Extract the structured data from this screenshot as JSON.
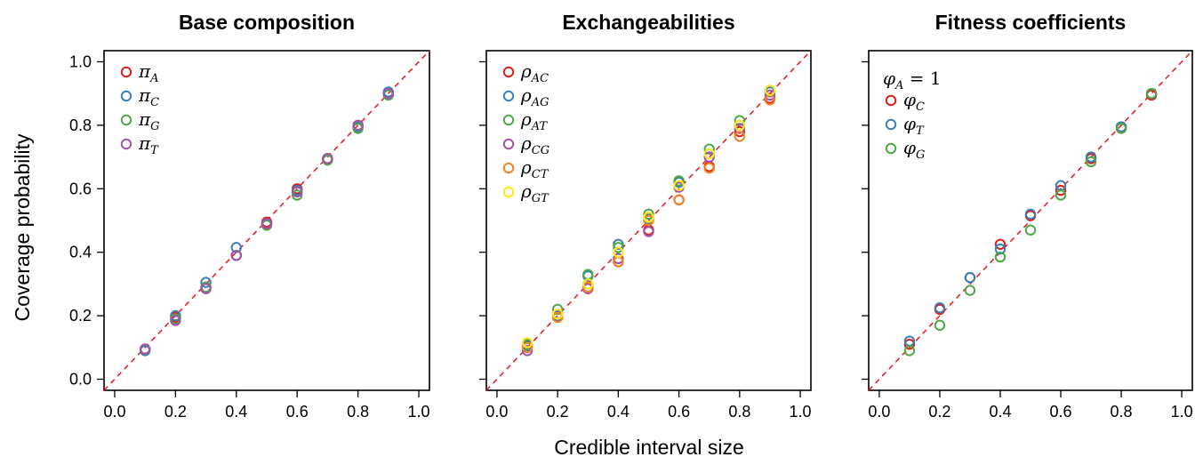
{
  "figure": {
    "xlabel": "Credible interval size",
    "ylabel": "Coverage probability"
  },
  "chart_data": [
    {
      "type": "scatter",
      "title": "Base composition",
      "xlim": [
        0,
        1
      ],
      "ylim": [
        0,
        1
      ],
      "x_ticks": [
        "0.0",
        "0.2",
        "0.4",
        "0.6",
        "0.8",
        "1.0"
      ],
      "y_ticks": [
        "0.0",
        "0.2",
        "0.4",
        "0.6",
        "0.8",
        "1.0"
      ],
      "diagonal": true,
      "legend_position": "top-left",
      "x": [
        0.1,
        0.2,
        0.3,
        0.4,
        0.5,
        0.6,
        0.7,
        0.8,
        0.9
      ],
      "series": [
        {
          "name": "π",
          "sub": "A",
          "color": "#DF1E1E",
          "values": [
            0.095,
            0.195,
            0.29,
            0.39,
            0.495,
            0.6,
            0.695,
            0.8,
            0.9
          ]
        },
        {
          "name": "π",
          "sub": "C",
          "color": "#3B7FB6",
          "values": [
            0.09,
            0.2,
            0.305,
            0.415,
            0.49,
            0.595,
            0.695,
            0.795,
            0.905
          ]
        },
        {
          "name": "π",
          "sub": "G",
          "color": "#4EA84A",
          "values": [
            0.095,
            0.19,
            0.29,
            0.39,
            0.485,
            0.58,
            0.69,
            0.79,
            0.895
          ]
        },
        {
          "name": "π",
          "sub": "T",
          "color": "#A153A8",
          "values": [
            0.095,
            0.185,
            0.285,
            0.39,
            0.49,
            0.59,
            0.695,
            0.8,
            0.9
          ]
        }
      ]
    },
    {
      "type": "scatter",
      "title": "Exchangeabilities",
      "xlim": [
        0,
        1
      ],
      "ylim": [
        0,
        1
      ],
      "x_ticks": [
        "0.0",
        "0.2",
        "0.4",
        "0.6",
        "0.8",
        "1.0"
      ],
      "diagonal": true,
      "legend_position": "top-left",
      "x": [
        0.1,
        0.2,
        0.3,
        0.4,
        0.5,
        0.6,
        0.7,
        0.8,
        0.9
      ],
      "series": [
        {
          "name": "ρ",
          "sub": "AC",
          "color": "#DF1E1E",
          "values": [
            0.1,
            0.195,
            0.29,
            0.37,
            0.47,
            0.565,
            0.67,
            0.78,
            0.885
          ]
        },
        {
          "name": "ρ",
          "sub": "AG",
          "color": "#3B7FB6",
          "values": [
            0.105,
            0.2,
            0.325,
            0.425,
            0.505,
            0.62,
            0.71,
            0.8,
            0.905
          ]
        },
        {
          "name": "ρ",
          "sub": "AT",
          "color": "#4EA84A",
          "values": [
            0.11,
            0.22,
            0.33,
            0.415,
            0.52,
            0.625,
            0.725,
            0.815,
            0.91
          ]
        },
        {
          "name": "ρ",
          "sub": "CG",
          "color": "#A153A8",
          "values": [
            0.09,
            0.205,
            0.285,
            0.38,
            0.465,
            0.605,
            0.7,
            0.79,
            0.895
          ]
        },
        {
          "name": "ρ",
          "sub": "CT",
          "color": "#F58220",
          "values": [
            0.1,
            0.195,
            0.29,
            0.37,
            0.5,
            0.565,
            0.665,
            0.765,
            0.88
          ]
        },
        {
          "name": "ρ",
          "sub": "GT",
          "color": "#FFE81A",
          "values": [
            0.115,
            0.205,
            0.3,
            0.4,
            0.51,
            0.61,
            0.71,
            0.8,
            0.91
          ]
        }
      ]
    },
    {
      "type": "scatter",
      "title": "Fitness coefficients",
      "xlim": [
        0,
        1
      ],
      "ylim": [
        0,
        1
      ],
      "x_ticks": [
        "0.0",
        "0.2",
        "0.4",
        "0.6",
        "0.8",
        "1.0"
      ],
      "diagonal": true,
      "legend_position": "top-left",
      "legend_note": {
        "name": "φ",
        "sub": "A",
        "text": " = 1"
      },
      "x": [
        0.1,
        0.2,
        0.3,
        0.4,
        0.5,
        0.6,
        0.7,
        0.8,
        0.9
      ],
      "series": [
        {
          "name": "φ",
          "sub": "C",
          "color": "#DF1E1E",
          "values": [
            0.11,
            0.22,
            0.32,
            0.425,
            0.515,
            0.595,
            0.695,
            0.795,
            0.895
          ]
        },
        {
          "name": "φ",
          "sub": "T",
          "color": "#3B7FB6",
          "values": [
            0.12,
            0.225,
            0.32,
            0.41,
            0.52,
            0.61,
            0.7,
            0.795,
            0.9
          ]
        },
        {
          "name": "φ",
          "sub": "G",
          "color": "#4EA84A",
          "values": [
            0.09,
            0.17,
            0.28,
            0.385,
            0.47,
            0.58,
            0.685,
            0.79,
            0.9
          ]
        }
      ]
    }
  ]
}
